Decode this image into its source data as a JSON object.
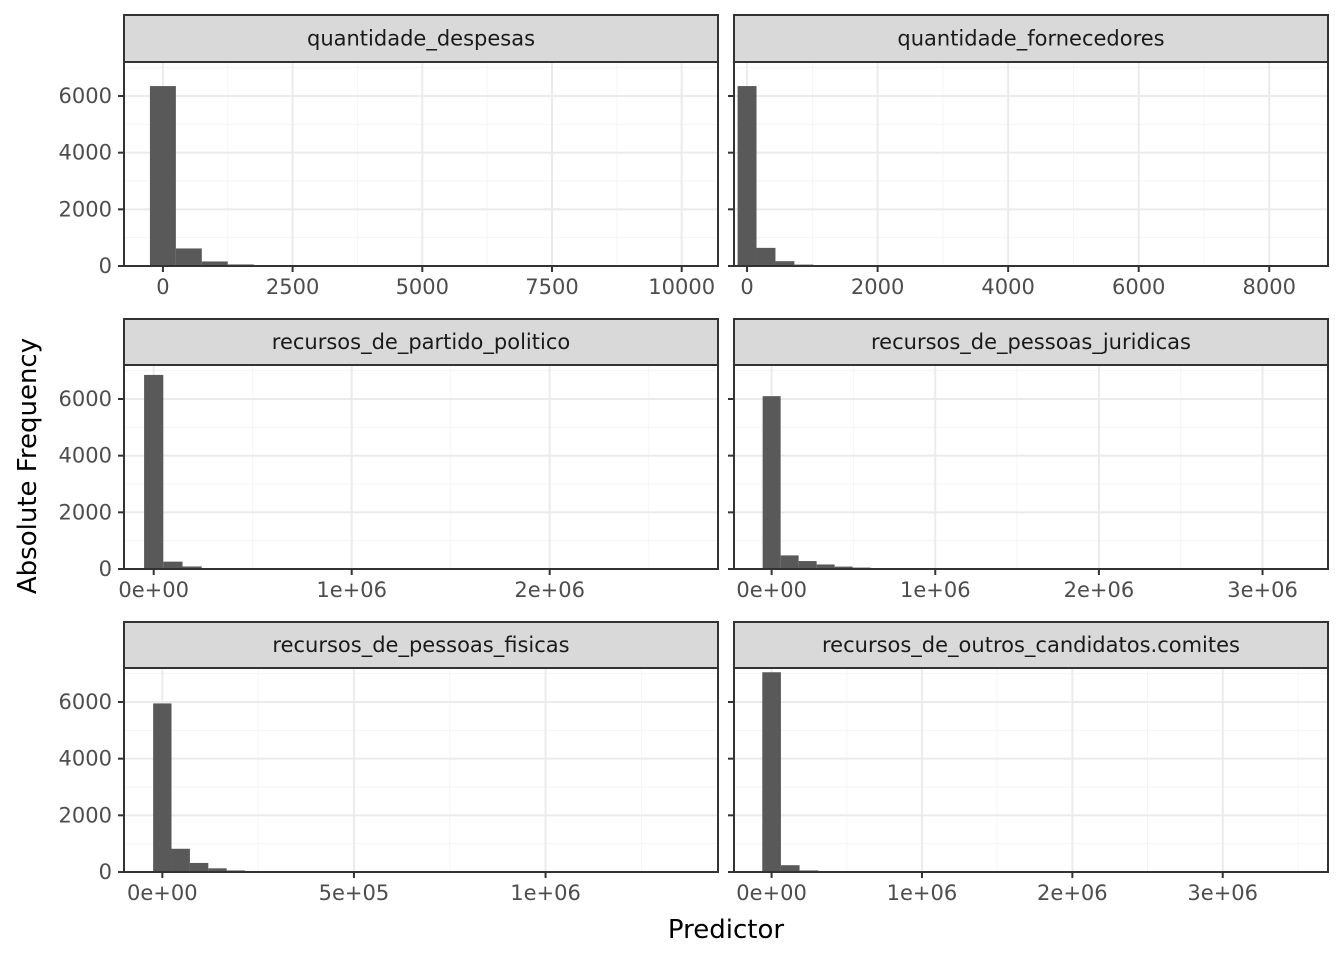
{
  "colors": {
    "bar": "#595959",
    "strip_fill": "#d9d9d9",
    "panel_border": "#333333",
    "grid_major": "#ebebeb",
    "grid_minor": "#f5f5f5",
    "tick_text": "#4d4d4d"
  },
  "chart_data": {
    "type": "bar",
    "subtype": "faceted-histogram",
    "xlabel": "Predictor",
    "ylabel": "Absolute Frequency",
    "grid": true,
    "y_ticks": [
      0,
      2000,
      4000,
      6000
    ],
    "y_tick_labels": [
      "0",
      "2000",
      "4000",
      "6000"
    ],
    "ylim": [
      0,
      7200
    ],
    "panels": [
      {
        "title": "quantidade_despesas",
        "xlim": [
          -750,
          10700
        ],
        "x_ticks": [
          0,
          2500,
          5000,
          7500,
          10000
        ],
        "x_tick_labels": [
          "0",
          "2500",
          "5000",
          "7500",
          "10000"
        ],
        "binwidth": 500,
        "bin_centers": [
          0,
          500,
          1000,
          1500,
          2000,
          2500,
          3000,
          3500,
          4000
        ],
        "counts": [
          6350,
          620,
          160,
          55,
          25,
          12,
          6,
          3,
          2
        ]
      },
      {
        "title": "quantidade_fornecedores",
        "xlim": [
          -200,
          8900
        ],
        "x_ticks": [
          0,
          2000,
          4000,
          6000,
          8000
        ],
        "x_tick_labels": [
          "0",
          "2000",
          "4000",
          "6000",
          "8000"
        ],
        "binwidth": 290,
        "bin_centers": [
          0,
          290,
          580,
          870,
          1160,
          1450,
          1740
        ],
        "counts": [
          6350,
          640,
          170,
          50,
          18,
          8,
          3
        ]
      },
      {
        "title": "recursos_de_partido_politico",
        "xlim": [
          -150000,
          2850000
        ],
        "x_ticks": [
          0,
          1000000,
          2000000
        ],
        "x_tick_labels": [
          "0e+00",
          "1e+06",
          "2e+06"
        ],
        "binwidth": 97000,
        "bin_centers": [
          0,
          97000,
          194000,
          291000,
          388000,
          485000
        ],
        "counts": [
          6850,
          260,
          90,
          35,
          15,
          8
        ]
      },
      {
        "title": "recursos_de_pessoas_juridicas",
        "xlim": [
          -230000,
          3400000
        ],
        "x_ticks": [
          0,
          1000000,
          2000000,
          3000000
        ],
        "x_tick_labels": [
          "0e+00",
          "1e+06",
          "2e+06",
          "3e+06"
        ],
        "binwidth": 110000,
        "bin_centers": [
          0,
          110000,
          220000,
          330000,
          440000,
          550000,
          660000,
          770000,
          880000,
          990000
        ],
        "counts": [
          6100,
          480,
          280,
          160,
          85,
          50,
          28,
          18,
          10,
          6
        ]
      },
      {
        "title": "recursos_de_pessoas_fisicas",
        "xlim": [
          -100000,
          1450000
        ],
        "x_ticks": [
          0,
          500000,
          1000000
        ],
        "x_tick_labels": [
          "0e+00",
          "5e+05",
          "1e+06"
        ],
        "binwidth": 48000,
        "bin_centers": [
          0,
          48000,
          96000,
          144000,
          192000,
          240000,
          288000,
          336000,
          384000,
          432000,
          480000
        ],
        "counts": [
          5950,
          820,
          320,
          130,
          55,
          30,
          16,
          10,
          6,
          4,
          3
        ]
      },
      {
        "title": "recursos_de_outros_candidatos.comites",
        "xlim": [
          -250000,
          3700000
        ],
        "x_ticks": [
          0,
          1000000,
          2000000,
          3000000
        ],
        "x_tick_labels": [
          "0e+00",
          "1e+06",
          "2e+06",
          "3e+06"
        ],
        "binwidth": 124000,
        "bin_centers": [
          0,
          124000,
          248000,
          372000,
          496000,
          620000,
          744000
        ],
        "counts": [
          7050,
          240,
          55,
          20,
          8,
          4,
          2
        ]
      }
    ]
  }
}
